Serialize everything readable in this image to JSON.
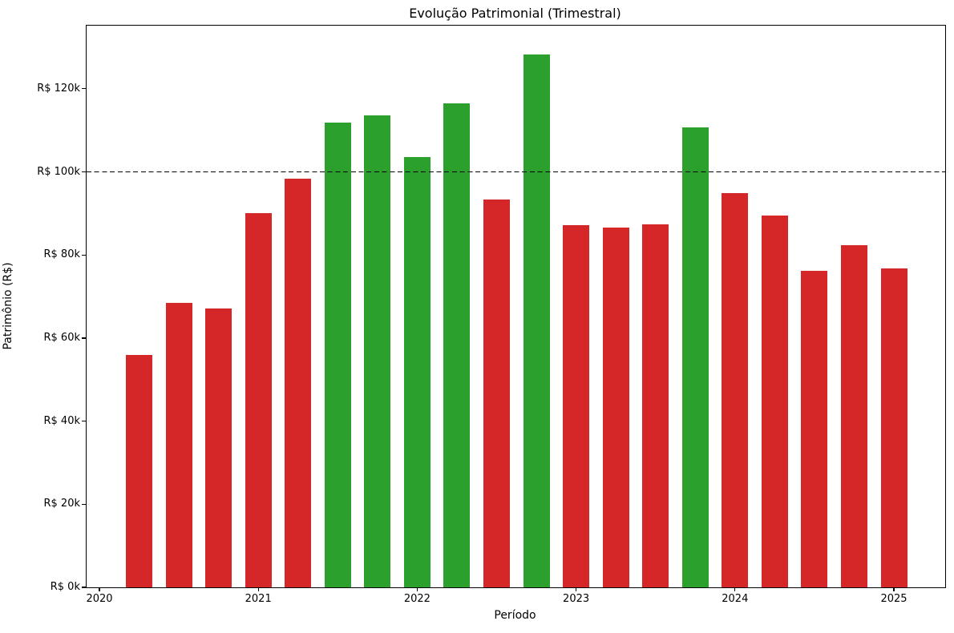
{
  "figure": {
    "background_color": "#ffffff"
  },
  "colors": {
    "bar_above_threshold": "#2ca02c",
    "bar_below_threshold": "#d62728",
    "threshold_line": "#000000",
    "axis_spine": "#000000",
    "text": "#000000"
  },
  "chart_data": {
    "type": "bar",
    "title": "Evolução Patrimonial (Trimestral)",
    "xlabel": "Período",
    "ylabel": "Patrimônio (R$)",
    "grid": false,
    "legend": "none",
    "x_axis": {
      "tick_labels": [
        "2020",
        "2021",
        "2022",
        "2023",
        "2024",
        "2025"
      ],
      "tick_values_years": [
        2020,
        2021,
        2022,
        2023,
        2024,
        2025
      ]
    },
    "y_axis": {
      "tick_labels": [
        "R$ 0k",
        "R$ 20k",
        "R$ 40k",
        "R$ 60k",
        "R$ 80k",
        "R$ 100k",
        "R$ 120k"
      ],
      "tick_values_k": [
        0,
        20,
        40,
        60,
        80,
        100,
        120
      ],
      "ylim_k": [
        0,
        135.2
      ]
    },
    "threshold": {
      "value_k": 100,
      "style": "dashed",
      "color": "#000000"
    },
    "color_rule": "green when value >= 100k, red when value < 100k",
    "quarters": [
      {
        "period": "2020-Q1",
        "t": 2020.25,
        "value_k": 56.0,
        "status": "below"
      },
      {
        "period": "2020-Q2",
        "t": 2020.5,
        "value_k": 68.5,
        "status": "below"
      },
      {
        "period": "2020-Q3",
        "t": 2020.75,
        "value_k": 67.2,
        "status": "below"
      },
      {
        "period": "2020-Q4",
        "t": 2021.0,
        "value_k": 90.1,
        "status": "below"
      },
      {
        "period": "2021-Q1",
        "t": 2021.25,
        "value_k": 98.4,
        "status": "below"
      },
      {
        "period": "2021-Q2",
        "t": 2021.5,
        "value_k": 111.9,
        "status": "above"
      },
      {
        "period": "2021-Q3",
        "t": 2021.75,
        "value_k": 113.6,
        "status": "above"
      },
      {
        "period": "2021-Q4",
        "t": 2022.0,
        "value_k": 103.6,
        "status": "above"
      },
      {
        "period": "2022-Q1",
        "t": 2022.25,
        "value_k": 116.5,
        "status": "above"
      },
      {
        "period": "2022-Q2",
        "t": 2022.5,
        "value_k": 93.3,
        "status": "below"
      },
      {
        "period": "2022-Q3",
        "t": 2022.75,
        "value_k": 128.3,
        "status": "above"
      },
      {
        "period": "2022-Q4",
        "t": 2023.0,
        "value_k": 87.2,
        "status": "below"
      },
      {
        "period": "2023-Q1",
        "t": 2023.25,
        "value_k": 86.6,
        "status": "below"
      },
      {
        "period": "2023-Q2",
        "t": 2023.5,
        "value_k": 87.4,
        "status": "below"
      },
      {
        "period": "2023-Q3",
        "t": 2023.75,
        "value_k": 110.7,
        "status": "above"
      },
      {
        "period": "2023-Q4",
        "t": 2024.0,
        "value_k": 94.9,
        "status": "below"
      },
      {
        "period": "2024-Q1",
        "t": 2024.25,
        "value_k": 89.5,
        "status": "below"
      },
      {
        "period": "2024-Q2",
        "t": 2024.5,
        "value_k": 76.2,
        "status": "below"
      },
      {
        "period": "2024-Q3",
        "t": 2024.75,
        "value_k": 82.4,
        "status": "below"
      },
      {
        "period": "2024-Q4",
        "t": 2025.0,
        "value_k": 76.8,
        "status": "below"
      }
    ]
  }
}
